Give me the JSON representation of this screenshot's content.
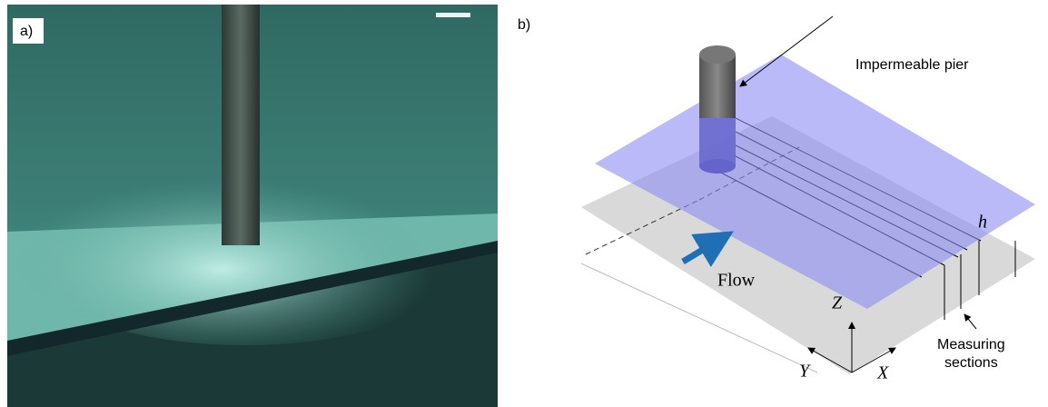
{
  "panel_a": {
    "label": "a)"
  },
  "panel_b": {
    "label": "b)",
    "pier_label": "Impermeable pier",
    "flow_label": "Flow",
    "axis_z": "Z",
    "axis_y": "Y",
    "axis_x": "X",
    "depth_label": "h",
    "sections_label": [
      "Measuring",
      "sections"
    ]
  }
}
